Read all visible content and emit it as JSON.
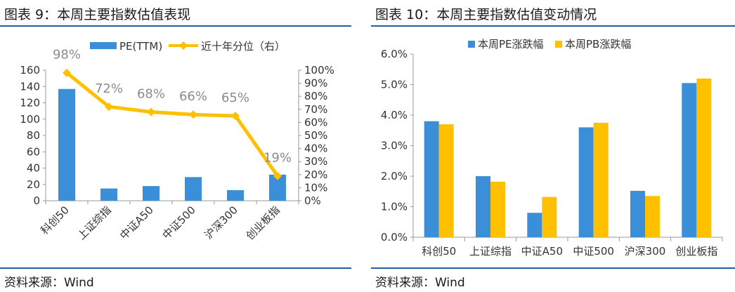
{
  "left": {
    "title": "图表 9：本周主要指数估值表现",
    "source": "资料来源：Wind",
    "chart_data": {
      "type": "bar",
      "categories": [
        "科创50",
        "上证综指",
        "中证A50",
        "中证500",
        "沪深300",
        "创业板指"
      ],
      "series": [
        {
          "name": "PE(TTM)",
          "type": "bar",
          "axis": "left",
          "values": [
            137,
            15,
            18,
            29,
            13,
            32
          ]
        },
        {
          "name": "近十年分位（右）",
          "type": "line",
          "axis": "right",
          "values": [
            98,
            72,
            68,
            66,
            65,
            19
          ]
        }
      ],
      "point_labels": [
        "98%",
        "72%",
        "68%",
        "66%",
        "65%",
        "19%"
      ],
      "ylim_left": [
        0,
        160
      ],
      "yticks_left": [
        "0",
        "20",
        "40",
        "60",
        "80",
        "100",
        "120",
        "140",
        "160"
      ],
      "ylim_right": [
        0,
        100
      ],
      "yticks_right": [
        "0%",
        "10%",
        "20%",
        "30%",
        "40%",
        "50%",
        "60%",
        "70%",
        "80%",
        "90%",
        "100%"
      ],
      "legend_position": "top-center",
      "grid": false,
      "colors": {
        "bar": "#3b8fd8",
        "line": "#ffc000",
        "point_label": "#8c8c8c"
      }
    }
  },
  "right": {
    "title": "图表 10：本周主要指数估值变动情况",
    "source": "资料来源：Wind",
    "chart_data": {
      "type": "bar",
      "categories": [
        "科创50",
        "上证综指",
        "中证A50",
        "中证500",
        "沪深300",
        "创业板指"
      ],
      "series": [
        {
          "name": "本周PE涨跌幅",
          "values": [
            3.8,
            2.0,
            0.8,
            3.6,
            1.52,
            5.05
          ]
        },
        {
          "name": "本周PB涨跌幅",
          "values": [
            3.7,
            1.82,
            1.32,
            3.75,
            1.35,
            5.2
          ]
        }
      ],
      "ylim": [
        0,
        6
      ],
      "yticks": [
        "0.0%",
        "1.0%",
        "2.0%",
        "3.0%",
        "4.0%",
        "5.0%",
        "6.0%"
      ],
      "legend_position": "top-left",
      "grid": false,
      "colors": {
        "pe": "#3b8fd8",
        "pb": "#ffc000"
      }
    }
  }
}
